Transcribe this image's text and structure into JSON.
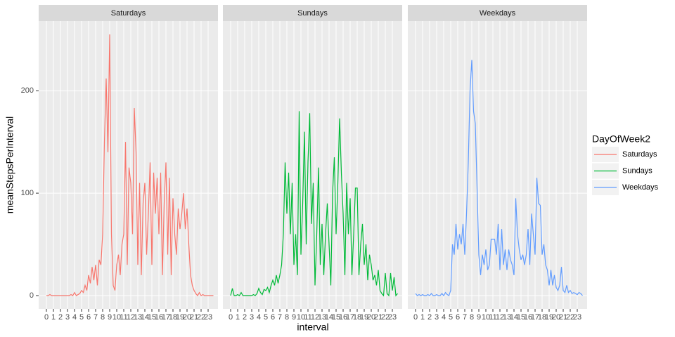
{
  "chart_data": {
    "type": "line",
    "xlabel": "interval",
    "ylabel": "meanStepsPerInterval",
    "legend_title": "DayOfWeek2",
    "facet": true,
    "grid": true,
    "legend_position": "right",
    "xlim": [
      -1.1,
      24.4
    ],
    "ylim": [
      -13,
      268
    ],
    "xticks": [
      0,
      1,
      2,
      3,
      4,
      5,
      6,
      7,
      8,
      9,
      10,
      11,
      12,
      13,
      14,
      15,
      16,
      17,
      18,
      19,
      20,
      21,
      22,
      23
    ],
    "yticks": [
      0,
      100,
      200
    ],
    "x": [
      0,
      0.25,
      0.5,
      0.75,
      1,
      1.25,
      1.5,
      1.75,
      2,
      2.25,
      2.5,
      2.75,
      3,
      3.25,
      3.5,
      3.75,
      4,
      4.25,
      4.5,
      4.75,
      5,
      5.25,
      5.5,
      5.75,
      6,
      6.25,
      6.5,
      6.75,
      7,
      7.25,
      7.5,
      7.75,
      8,
      8.25,
      8.5,
      8.75,
      9,
      9.25,
      9.5,
      9.75,
      10,
      10.25,
      10.5,
      10.75,
      11,
      11.25,
      11.5,
      11.75,
      12,
      12.25,
      12.5,
      12.75,
      13,
      13.25,
      13.5,
      13.75,
      14,
      14.25,
      14.5,
      14.75,
      15,
      15.25,
      15.5,
      15.75,
      16,
      16.25,
      16.5,
      16.75,
      17,
      17.25,
      17.5,
      17.75,
      18,
      18.25,
      18.5,
      18.75,
      19,
      19.25,
      19.5,
      19.75,
      20,
      20.25,
      20.5,
      20.75,
      21,
      21.25,
      21.5,
      21.75,
      22,
      22.25,
      22.5,
      22.75,
      23,
      23.25,
      23.5,
      23.75
    ],
    "series": [
      {
        "name": "Saturdays",
        "color": "#F8766D",
        "values": [
          0,
          0,
          1,
          0,
          0,
          0,
          0,
          0,
          0,
          0,
          0,
          0,
          0,
          0,
          1,
          0,
          3,
          0,
          1,
          2,
          5,
          3,
          10,
          5,
          20,
          12,
          28,
          15,
          30,
          10,
          35,
          30,
          60,
          150,
          212,
          140,
          255,
          60,
          10,
          5,
          30,
          40,
          20,
          50,
          60,
          150,
          30,
          125,
          110,
          60,
          183,
          140,
          30,
          110,
          20,
          90,
          110,
          40,
          80,
          130,
          30,
          120,
          80,
          115,
          60,
          120,
          20,
          90,
          130,
          40,
          115,
          20,
          95,
          60,
          40,
          85,
          65,
          80,
          100,
          65,
          85,
          50,
          20,
          10,
          5,
          2,
          0,
          3,
          0,
          1,
          0,
          0,
          0,
          0,
          0,
          0
        ]
      },
      {
        "name": "Sundays",
        "color": "#00BA38",
        "values": [
          0,
          7,
          0,
          0,
          1,
          0,
          3,
          0,
          0,
          0,
          0,
          0,
          0,
          1,
          0,
          2,
          7,
          3,
          1,
          6,
          5,
          8,
          3,
          10,
          15,
          10,
          20,
          12,
          20,
          30,
          60,
          130,
          80,
          120,
          60,
          110,
          30,
          60,
          20,
          180,
          40,
          90,
          160,
          50,
          130,
          178,
          70,
          110,
          10,
          60,
          125,
          30,
          70,
          20,
          60,
          90,
          50,
          10,
          100,
          135,
          60,
          110,
          173,
          120,
          80,
          20,
          110,
          60,
          95,
          20,
          60,
          105,
          105,
          20,
          50,
          70,
          30,
          50,
          15,
          40,
          30,
          15,
          20,
          10,
          25,
          5,
          2,
          0,
          22,
          2,
          0,
          22,
          5,
          18,
          0,
          2
        ]
      },
      {
        "name": "Weekdays",
        "color": "#619CFF",
        "values": [
          2,
          0,
          1,
          0,
          1,
          0,
          0,
          1,
          0,
          2,
          0,
          0,
          1,
          0,
          0,
          2,
          0,
          3,
          1,
          0,
          5,
          50,
          40,
          70,
          45,
          60,
          50,
          70,
          40,
          80,
          130,
          200,
          230,
          180,
          168,
          105,
          40,
          20,
          40,
          30,
          45,
          25,
          30,
          55,
          55,
          55,
          40,
          70,
          25,
          65,
          30,
          45,
          25,
          45,
          35,
          30,
          20,
          95,
          60,
          45,
          35,
          40,
          30,
          40,
          65,
          30,
          80,
          60,
          40,
          115,
          90,
          88,
          40,
          50,
          30,
          25,
          10,
          25,
          10,
          20,
          8,
          5,
          10,
          28,
          5,
          3,
          10,
          3,
          5,
          2,
          3,
          2,
          1,
          3,
          2,
          0
        ]
      }
    ]
  }
}
